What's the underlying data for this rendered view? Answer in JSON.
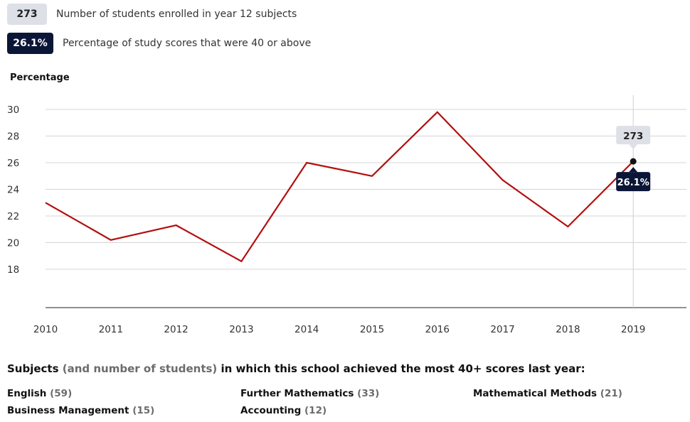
{
  "legend": {
    "enrolled_value": "273",
    "enrolled_label": "Number of students enrolled in year 12 subjects",
    "score_value": "26.1%",
    "score_label": "Percentage of study scores that were 40 or above"
  },
  "chart_data": {
    "type": "line",
    "ylabel": "Percentage",
    "xlabel": "",
    "x": [
      "2010",
      "2011",
      "2012",
      "2013",
      "2014",
      "2015",
      "2016",
      "2017",
      "2018",
      "2019"
    ],
    "series": [
      {
        "values": [
          23.0,
          20.2,
          21.3,
          18.6,
          26.0,
          25.0,
          29.8,
          24.7,
          21.2,
          26.1
        ]
      }
    ],
    "yticks": [
      18,
      20,
      22,
      24,
      26,
      28,
      30
    ],
    "ylim": [
      15.5,
      31
    ],
    "grid": true,
    "line_color": "#b20f0f",
    "highlight": {
      "x": "2019",
      "top_label": "273",
      "bottom_label": "26.1%"
    }
  },
  "subjects": {
    "title_a": "Subjects",
    "title_b": "(and number of students)",
    "title_c": "in which this school achieved the most 40+ scores last year:",
    "items": [
      {
        "name": "English",
        "count": "(59)"
      },
      {
        "name": "Further Mathematics",
        "count": "(33)"
      },
      {
        "name": "Mathematical Methods",
        "count": "(21)"
      },
      {
        "name": "Business Management",
        "count": "(15)"
      },
      {
        "name": "Accounting",
        "count": "(12)"
      }
    ]
  },
  "colors": {
    "dark_badge": "#0b1637",
    "light_badge": "#dde0e7",
    "line": "#b20f0f"
  }
}
